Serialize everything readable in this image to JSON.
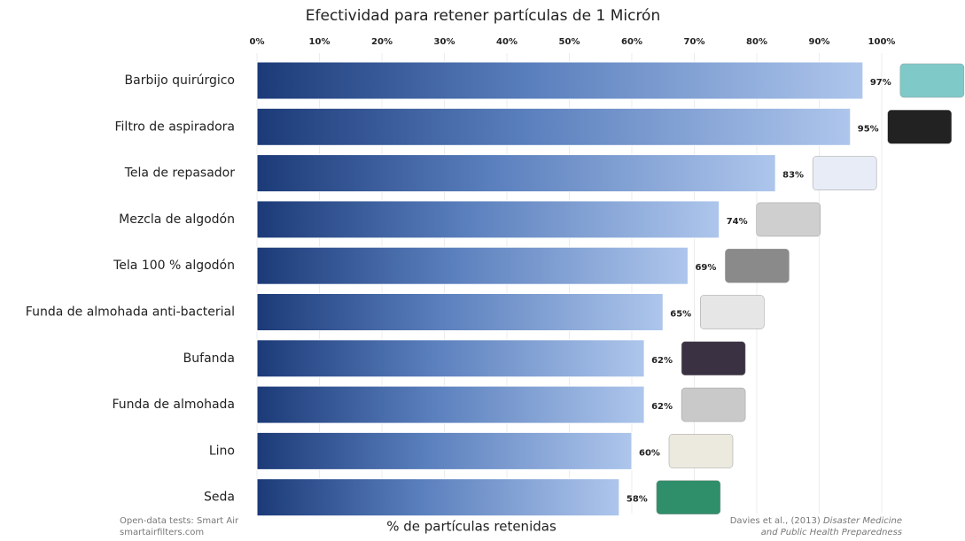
{
  "chart_data": {
    "type": "bar",
    "orientation": "horizontal",
    "title": "Efectividad para retener partículas de 1 Micrón",
    "xlabel": "% de partículas retenidas",
    "categories": [
      "Barbijo quirúrgico",
      "Filtro de aspiradora",
      "Tela de repasador",
      "Mezcla de algodón",
      "Tela 100 % algodón",
      "Funda de almohada anti-bacterial",
      "Bufanda",
      "Funda de almohada",
      "Lino",
      "Seda"
    ],
    "values": [
      97,
      95,
      83,
      74,
      69,
      65,
      62,
      62,
      60,
      58
    ],
    "value_labels": [
      "97%",
      "95%",
      "83%",
      "74%",
      "69%",
      "65%",
      "62%",
      "62%",
      "60%",
      "58%"
    ],
    "color": "#2a4c8c",
    "xlim": [
      0,
      100
    ],
    "xticks": [
      {
        "value": 0,
        "label": "0%"
      },
      {
        "value": 10,
        "label": "10%"
      },
      {
        "value": 20,
        "label": "20%"
      },
      {
        "value": 30,
        "label": "30%"
      },
      {
        "value": 40,
        "label": "40%"
      },
      {
        "value": 50,
        "label": "50%"
      },
      {
        "value": 60,
        "label": "60%"
      },
      {
        "value": 70,
        "label": "70%"
      },
      {
        "value": 80,
        "label": "80%"
      },
      {
        "value": 90,
        "label": "90%"
      },
      {
        "value": 100,
        "label": "100%"
      }
    ],
    "grid": true,
    "source_left": [
      "Open-data tests: Smart Air",
      "smartairfilters.com"
    ],
    "source_right": [
      "Davies et al., (2013) ",
      "Disaster Medicine",
      "and Public Health Preparedness"
    ]
  }
}
